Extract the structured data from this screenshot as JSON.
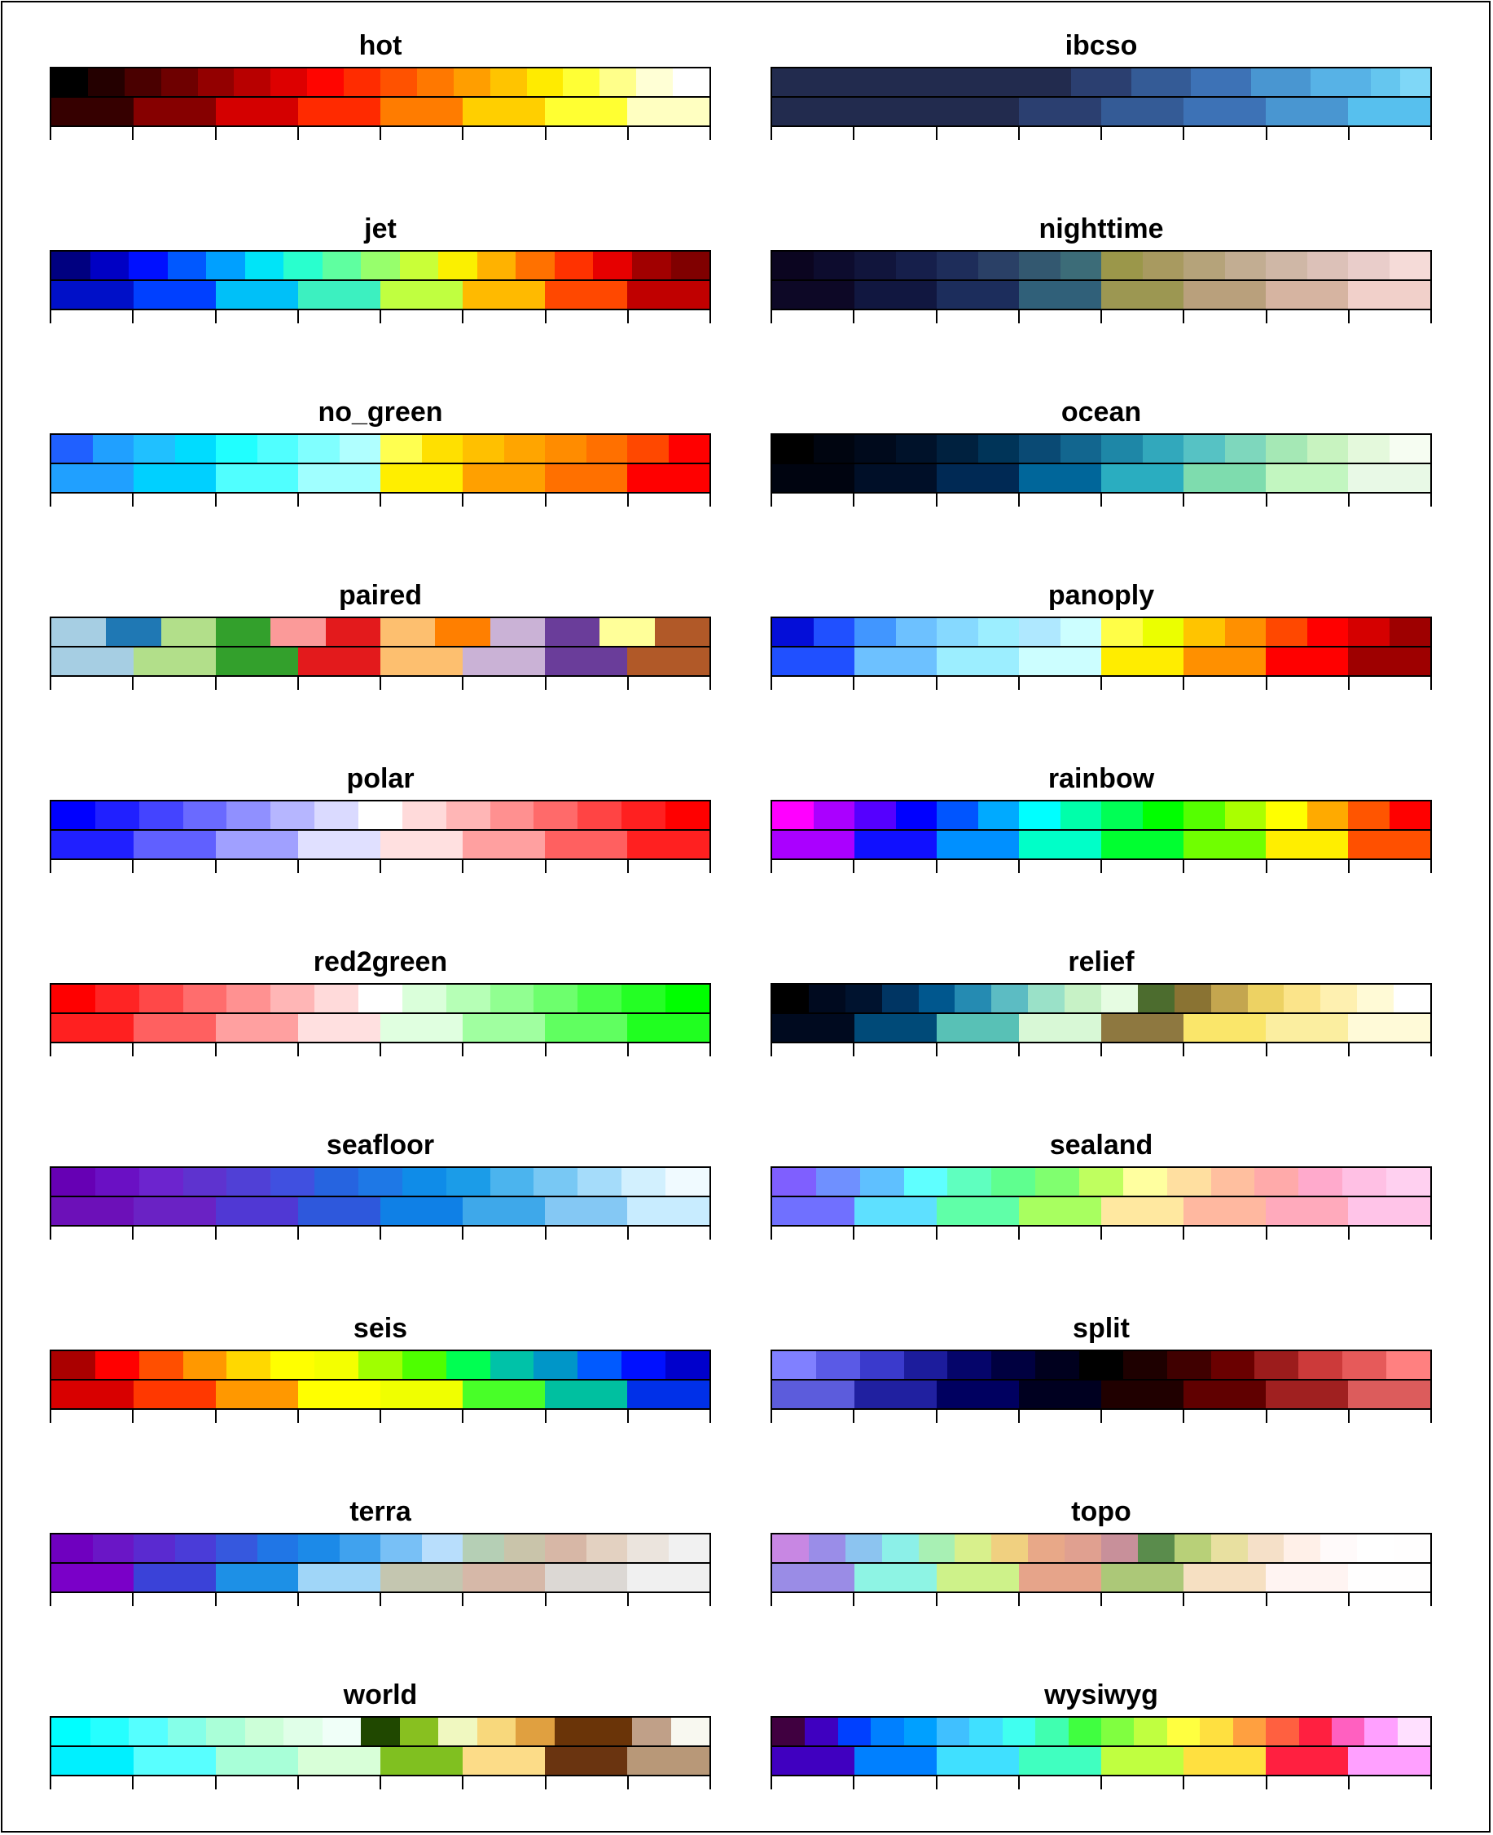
{
  "colormaps": [
    {
      "name": "hot",
      "continuous": [
        "#000000",
        "#240000",
        "#4a0000",
        "#6e0000",
        "#930000",
        "#b80000",
        "#dd0000",
        "#ff0500",
        "#ff2c00",
        "#ff5200",
        "#ff7800",
        "#ff9e00",
        "#ffc400",
        "#ffeb00",
        "#ffff35",
        "#ffff8a",
        "#ffffd5",
        "#ffffff"
      ],
      "discrete": [
        "#360000",
        "#860000",
        "#d40000",
        "#ff2a00",
        "#ff7c00",
        "#ffcf00",
        "#ffff32",
        "#ffffc1"
      ]
    },
    {
      "name": "ibcso",
      "continuous": [
        "#222b4e",
        "#222b4e",
        "#222b4e",
        "#222b4e",
        "#222b4e",
        "#222b4e",
        "#222b4e",
        "#222b4e",
        "#222b4e",
        "#222b4e",
        "#2b3f70",
        "#2b3f70",
        "#345b96",
        "#345b96",
        "#3d72b6",
        "#3d72b6",
        "#4996d1",
        "#4996d1",
        "#57b2e6",
        "#57b2e6",
        "#65c6ef",
        "#7fd7f7"
      ],
      "discrete": [
        "#222b4e",
        "#222b4e",
        "#222b4e",
        "#2b3f70",
        "#345b96",
        "#3d72b6",
        "#4996d1",
        "#57c0ee"
      ]
    },
    {
      "name": "jet",
      "continuous": [
        "#000080",
        "#0000c4",
        "#0010ff",
        "#0058ff",
        "#00a0ff",
        "#00e4f8",
        "#29ffce",
        "#5fffa0",
        "#97ff6c",
        "#c9ff38",
        "#fbf000",
        "#ffb200",
        "#ff7100",
        "#ff3200",
        "#e60000",
        "#a10000",
        "#800000"
      ],
      "discrete": [
        "#0010c8",
        "#0040ff",
        "#00c0f8",
        "#3cf0c0",
        "#c0ff40",
        "#ffba00",
        "#ff4800",
        "#c00000"
      ]
    },
    {
      "name": "nighttime",
      "continuous": [
        "#0b0520",
        "#0d0c2e",
        "#11153c",
        "#161f4b",
        "#1e2d5a",
        "#2a4066",
        "#335870",
        "#3c6c78",
        "#9b974a",
        "#a89a60",
        "#b5a37a",
        "#c2ad92",
        "#cfb7a6",
        "#dcc1b8",
        "#e9cdca",
        "#f5dbd8"
      ],
      "discrete": [
        "#0d0826",
        "#111740",
        "#1c2d5c",
        "#306079",
        "#9c9752",
        "#b9a07c",
        "#d6b4a1",
        "#f1d0ca"
      ]
    },
    {
      "name": "no_green",
      "continuous": [
        "#2060ff",
        "#20a0ff",
        "#20c0ff",
        "#00dcff",
        "#20ffff",
        "#50ffff",
        "#80ffff",
        "#b0ffff",
        "#ffff50",
        "#ffe000",
        "#ffc000",
        "#ffa500",
        "#ff8c00",
        "#ff7000",
        "#ff4800",
        "#ff0000"
      ],
      "discrete": [
        "#20a0ff",
        "#00d0ff",
        "#50ffff",
        "#a0ffff",
        "#ffee00",
        "#ffa000",
        "#ff7000",
        "#ff0000"
      ]
    },
    {
      "name": "ocean",
      "continuous": [
        "#000000",
        "#000510",
        "#000a1c",
        "#00122a",
        "#00213f",
        "#003458",
        "#0a4a74",
        "#12668f",
        "#1e87a7",
        "#32a8bc",
        "#56c2c4",
        "#7ed7bd",
        "#a5e8b5",
        "#c8f3c0",
        "#e4f9dc",
        "#f6fdf2"
      ],
      "discrete": [
        "#000410",
        "#000f28",
        "#002954",
        "#00669a",
        "#2aadc0",
        "#7edcae",
        "#c2f6c0",
        "#e8f9e6"
      ]
    },
    {
      "name": "paired",
      "continuous": [
        "#a6cee3",
        "#1f78b4",
        "#b2df8a",
        "#33a02c",
        "#fb9a99",
        "#e31a1c",
        "#fdbf6f",
        "#ff7f00",
        "#cab2d6",
        "#6a3d9a",
        "#ffff99",
        "#b15928"
      ],
      "discrete": [
        "#a6cee3",
        "#b2df8a",
        "#33a02c",
        "#e31a1c",
        "#fdbf6f",
        "#cab2d6",
        "#6a3d9a",
        "#b15928"
      ]
    },
    {
      "name": "panoply",
      "continuous": [
        "#040ed8",
        "#2050ff",
        "#4196ff",
        "#6dc1ff",
        "#86d9ff",
        "#9ceeff",
        "#afe8ff",
        "#ccfeff",
        "#fffe47",
        "#ebff00",
        "#ffc400",
        "#ff9000",
        "#ff4800",
        "#ff0000",
        "#d50000",
        "#9e0000"
      ],
      "discrete": [
        "#2050ff",
        "#6dc1ff",
        "#9ceeff",
        "#ccfeff",
        "#ffed00",
        "#ff9000",
        "#ff0000",
        "#9e0000"
      ]
    },
    {
      "name": "polar",
      "continuous": [
        "#0000ff",
        "#2020ff",
        "#4444ff",
        "#6a6aff",
        "#9090ff",
        "#b6b6ff",
        "#dadaff",
        "#ffffff",
        "#ffdada",
        "#ffb6b6",
        "#ff9090",
        "#ff6a6a",
        "#ff4444",
        "#ff2020",
        "#ff0000"
      ],
      "discrete": [
        "#2020ff",
        "#6060ff",
        "#a0a0ff",
        "#e0e0ff",
        "#ffe0e0",
        "#ffa0a0",
        "#ff6060",
        "#ff2020"
      ]
    },
    {
      "name": "rainbow",
      "continuous": [
        "#ff00ff",
        "#aa00ff",
        "#5500ff",
        "#0000ff",
        "#0055ff",
        "#00aaff",
        "#00ffff",
        "#00ffaa",
        "#00ff55",
        "#00ff00",
        "#55ff00",
        "#aaff00",
        "#ffff00",
        "#ffaa00",
        "#ff5500",
        "#ff0000"
      ],
      "discrete": [
        "#aa00ff",
        "#1010ff",
        "#0090ff",
        "#00ffc8",
        "#00ff30",
        "#70ff00",
        "#ffee00",
        "#ff5000"
      ]
    },
    {
      "name": "red2green",
      "continuous": [
        "#ff0000",
        "#ff2424",
        "#ff4848",
        "#ff6d6d",
        "#ff9191",
        "#ffb6b6",
        "#ffdada",
        "#ffffff",
        "#daffda",
        "#b6ffb6",
        "#91ff91",
        "#6dff6d",
        "#48ff48",
        "#24ff24",
        "#00ff00"
      ],
      "discrete": [
        "#ff2020",
        "#ff6060",
        "#ffa0a0",
        "#ffe0e0",
        "#e0ffe0",
        "#a0ffa0",
        "#60ff60",
        "#20ff20"
      ]
    },
    {
      "name": "relief",
      "continuous": [
        "#000000",
        "#000a1f",
        "#00132f",
        "#003563",
        "#00578e",
        "#258bb2",
        "#5cbcc3",
        "#9ae1c8",
        "#c7f2c6",
        "#e6fce2",
        "#4c6c2e",
        "#8a7333",
        "#c4a64f",
        "#edd263",
        "#fbe48a",
        "#fef0b0",
        "#fffad6",
        "#ffffff"
      ],
      "discrete": [
        "#000a1f",
        "#004a78",
        "#58c1b6",
        "#d8f8d6",
        "#8e7840",
        "#fae66a",
        "#fbeea0",
        "#fffad8"
      ]
    },
    {
      "name": "seafloor",
      "continuous": [
        "#6600b4",
        "#6a10c4",
        "#6c24ce",
        "#5e33cf",
        "#5040d6",
        "#4050e0",
        "#2664e0",
        "#1e78e6",
        "#0f8ce8",
        "#1b9ce8",
        "#4bb4ee",
        "#78c8f4",
        "#a5dcfa",
        "#d2f0fe",
        "#f0faff"
      ],
      "discrete": [
        "#6c10b8",
        "#6a22c4",
        "#5038d4",
        "#2e58dc",
        "#0f80e6",
        "#3ea8ea",
        "#84c8f4",
        "#c8ecff"
      ]
    },
    {
      "name": "sealand",
      "continuous": [
        "#7f5fff",
        "#6f90ff",
        "#5fc0ff",
        "#5fffff",
        "#5fffbf",
        "#5fff8f",
        "#80ff6f",
        "#bfff5f",
        "#ffff9f",
        "#ffdfa0",
        "#ffbf9f",
        "#ffaaaa",
        "#ffaacc",
        "#ffc0e4",
        "#ffd0f0"
      ],
      "discrete": [
        "#7070ff",
        "#5ee0ff",
        "#60ffa8",
        "#a8ff60",
        "#ffe8a0",
        "#ffb8a0",
        "#ffaabc",
        "#ffc4e8"
      ]
    },
    {
      "name": "seis",
      "continuous": [
        "#aa0000",
        "#ff0000",
        "#ff4f00",
        "#ff9800",
        "#ffd800",
        "#ffff00",
        "#f4ff00",
        "#a0ff00",
        "#4eff00",
        "#00ff52",
        "#00c2a8",
        "#0096c8",
        "#005aff",
        "#0010ff",
        "#0000cc"
      ],
      "discrete": [
        "#d80000",
        "#ff3800",
        "#ff9800",
        "#ffff00",
        "#f0ff00",
        "#48ff28",
        "#00c0a0",
        "#0030e8"
      ]
    },
    {
      "name": "split",
      "continuous": [
        "#8080ff",
        "#5a5ae6",
        "#3a3acc",
        "#1c1c9c",
        "#05056a",
        "#000040",
        "#00001e",
        "#000000",
        "#1e0000",
        "#400000",
        "#6a0000",
        "#9c1c1c",
        "#cc3a3a",
        "#e65a5a",
        "#ff8080"
      ],
      "discrete": [
        "#5c5cdc",
        "#2020a0",
        "#000060",
        "#000020",
        "#200000",
        "#600000",
        "#a02020",
        "#dc5c5c"
      ]
    },
    {
      "name": "terra",
      "continuous": [
        "#6f00bf",
        "#6a16c6",
        "#5a2ad0",
        "#4a3cd8",
        "#3658de",
        "#2076e6",
        "#1c8ae8",
        "#40a2ee",
        "#78c0f6",
        "#b8defc",
        "#b5cfb5",
        "#c9c4aa",
        "#d7b7a6",
        "#e3d1c1",
        "#ebe4dd",
        "#f1f1f1"
      ],
      "discrete": [
        "#7a00c8",
        "#3a42d8",
        "#1d90e6",
        "#a0d6f8",
        "#c4c6b0",
        "#d6b8a8",
        "#dcd8d4",
        "#f0f0f0"
      ]
    },
    {
      "name": "topo",
      "continuous": [
        "#c887e3",
        "#9a8de8",
        "#8cc4f0",
        "#8cf0e8",
        "#a8f0b4",
        "#d8f08c",
        "#f0d080",
        "#e8a888",
        "#e0a090",
        "#c8909a",
        "#5a8c4c",
        "#b8d078",
        "#e8e0a0",
        "#f5e0c8",
        "#fff0e8",
        "#fffafa",
        "#ffffff",
        "#fffefe"
      ],
      "discrete": [
        "#9a8ce6",
        "#8ef4e4",
        "#cef28a",
        "#e6a48a",
        "#acc878",
        "#f6e0c2",
        "#fff4f2",
        "#fffefe"
      ]
    },
    {
      "name": "world",
      "continuous": [
        "#00ffff",
        "#26ffff",
        "#55ffff",
        "#85ffe8",
        "#aaffd8",
        "#ccffd8",
        "#e0ffe8",
        "#f0fff8",
        "#204800",
        "#88c020",
        "#f0f8c0",
        "#f8d87c",
        "#e0a040",
        "#6a3408",
        "#6a3408",
        "#c0a088",
        "#f8f8f0"
      ],
      "discrete": [
        "#00f0ff",
        "#58ffff",
        "#a8ffd8",
        "#d8ffd8",
        "#80c020",
        "#fcdc88",
        "#6a3410",
        "#b89878"
      ]
    },
    {
      "name": "wysiwyg",
      "continuous": [
        "#400040",
        "#3f00c0",
        "#0040ff",
        "#0080ff",
        "#00a0ff",
        "#40c0ff",
        "#40e0ff",
        "#40fff0",
        "#40ffb0",
        "#40ff40",
        "#80ff40",
        "#c0ff40",
        "#ffff40",
        "#ffe040",
        "#ffa040",
        "#ff6040",
        "#ff2040",
        "#ff60c0",
        "#ffa0ff",
        "#ffe0ff"
      ],
      "discrete": [
        "#4000c0",
        "#0080ff",
        "#40e0ff",
        "#40ffc0",
        "#c0ff40",
        "#ffe040",
        "#ff2040",
        "#ffa0ff"
      ]
    }
  ]
}
